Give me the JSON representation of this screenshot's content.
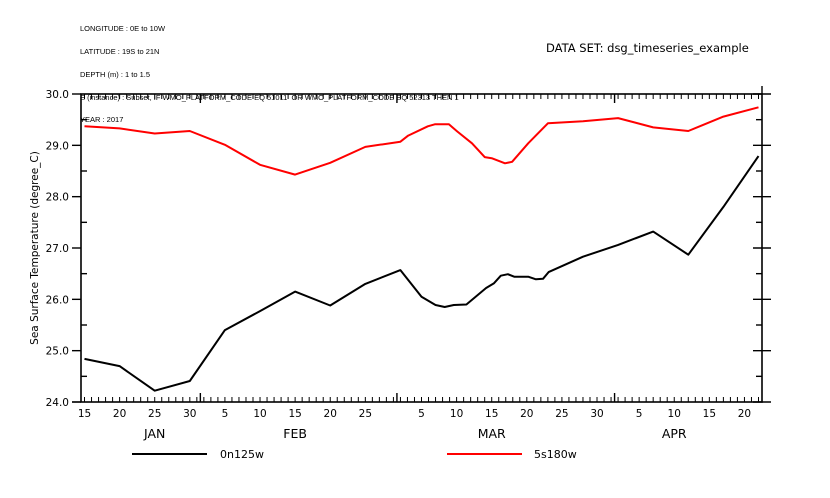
{
  "header": {
    "meta_lines": [
      "LONGITUDE : 0E to 10W",
      "LATITUDE : 19S to 21N",
      "DEPTH (m) : 1 to 1.5",
      "E (instance) : Subset, IF WMO_PLATFORM_CODE EQ 51011  OR WMO_PLATFORM_CODE EQ 52313 THEN 1",
      "YEAR : 2017"
    ],
    "dataset": "DATA SET: dsg_timeseries_example"
  },
  "chart_data": {
    "type": "line",
    "title": "",
    "xlabel": "",
    "ylabel": "Sea Surface Temperature (degree_C)",
    "ylim": [
      24.0,
      30.0
    ],
    "yticks": [
      "24.0",
      "25.0",
      "26.0",
      "27.0",
      "28.0",
      "29.0",
      "30.0"
    ],
    "x_unit": "days since 15-JAN-2017",
    "xlim": [
      -0.5,
      96.5
    ],
    "xtick_labels": [
      {
        "day": 0,
        "label": "15"
      },
      {
        "day": 5,
        "label": "20"
      },
      {
        "day": 10,
        "label": "25"
      },
      {
        "day": 15,
        "label": "30"
      },
      {
        "day": 20,
        "label": "5"
      },
      {
        "day": 25,
        "label": "10"
      },
      {
        "day": 30,
        "label": "15"
      },
      {
        "day": 35,
        "label": "20"
      },
      {
        "day": 40,
        "label": "25"
      },
      {
        "day": 48,
        "label": "5"
      },
      {
        "day": 53,
        "label": "10"
      },
      {
        "day": 58,
        "label": "15"
      },
      {
        "day": 63,
        "label": "20"
      },
      {
        "day": 68,
        "label": "25"
      },
      {
        "day": 73,
        "label": "30"
      },
      {
        "day": 79,
        "label": "5"
      },
      {
        "day": 84,
        "label": "10"
      },
      {
        "day": 89,
        "label": "15"
      },
      {
        "day": 94,
        "label": "20"
      }
    ],
    "month_labels": [
      {
        "day": 10,
        "label": "JAN"
      },
      {
        "day": 30,
        "label": "FEB"
      },
      {
        "day": 58,
        "label": "MAR"
      },
      {
        "day": 84,
        "label": "APR"
      }
    ],
    "major_ticks_days": [
      16.5,
      44.5,
      75.5
    ],
    "grid": false,
    "legend_position": "bottom",
    "series": [
      {
        "name": "0n125w",
        "color": "#000000",
        "x": [
          0,
          5,
          10,
          15,
          20,
          25,
          30,
          35,
          40,
          45,
          48,
          50,
          51.3,
          52.6,
          54.4,
          57.2,
          58.3,
          59.3,
          60.3,
          61.2,
          63.2,
          64.3,
          65.3,
          66.1,
          71.0,
          76.0,
          81.0,
          86.0,
          91.0,
          96.0
        ],
        "values": [
          24.84,
          24.7,
          24.22,
          24.41,
          25.4,
          25.77,
          26.15,
          25.88,
          26.3,
          26.57,
          26.05,
          25.89,
          25.85,
          25.89,
          25.9,
          26.22,
          26.31,
          26.46,
          26.49,
          26.44,
          26.44,
          26.39,
          26.4,
          26.53,
          26.83,
          27.06,
          27.32,
          26.87,
          27.8,
          28.79
        ]
      },
      {
        "name": "5s180w",
        "color": "#ff0000",
        "x": [
          0,
          5,
          10,
          15,
          20,
          25,
          30,
          35,
          40,
          45,
          46.1,
          48.9,
          49.9,
          51.9,
          53.1,
          55.2,
          57.0,
          58.0,
          59.9,
          60.9,
          63.2,
          66.0,
          71.0,
          76.0,
          81.0,
          86.0,
          91.0,
          96.0
        ],
        "values": [
          29.37,
          29.33,
          29.23,
          29.28,
          29.01,
          28.62,
          28.43,
          28.66,
          28.97,
          29.07,
          29.19,
          29.37,
          29.41,
          29.41,
          29.27,
          29.04,
          28.77,
          28.75,
          28.65,
          28.68,
          29.04,
          29.43,
          29.47,
          29.53,
          29.35,
          29.28,
          29.56,
          29.74
        ]
      }
    ]
  },
  "legend": {
    "items": [
      {
        "label": "0n125w",
        "color": "#000000"
      },
      {
        "label": "5s180w",
        "color": "#ff0000"
      }
    ]
  }
}
